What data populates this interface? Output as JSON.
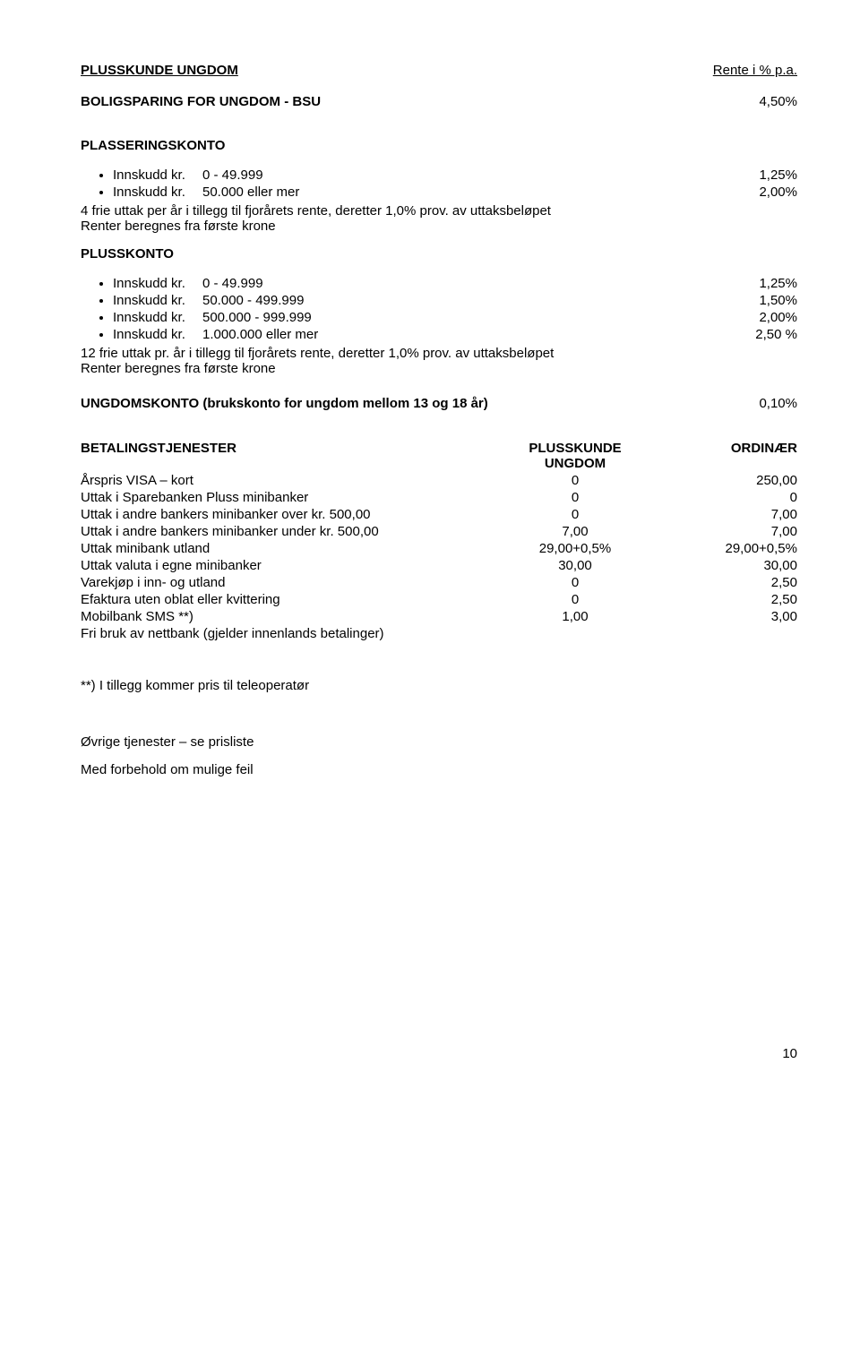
{
  "header": {
    "title_left": "PLUSSKUNDE UNGDOM",
    "title_right": "Rente i % p.a."
  },
  "bsu": {
    "label": "BOLIGSPARING FOR UNGDOM  - BSU",
    "value": "4,50%"
  },
  "plasseringskonto": {
    "title": "PLASSERINGSKONTO",
    "items": [
      {
        "label": "Innskudd kr.",
        "range": "0  -   49.999",
        "value": "1,25%"
      },
      {
        "label": "Innskudd kr.",
        "range": "50.000  eller mer",
        "value": "2,00%"
      }
    ],
    "note1": "4 frie uttak per år i tillegg til fjorårets rente, deretter 1,0% prov. av uttaksbeløpet",
    "note2": "Renter beregnes fra første krone"
  },
  "plusskonto": {
    "title": "PLUSSKONTO",
    "items": [
      {
        "label": "Innskudd kr.",
        "range": "0  -    49.999",
        "value": "1,25%"
      },
      {
        "label": "Innskudd kr.",
        "range": "50.000  -  499.999",
        "value": "1,50%"
      },
      {
        "label": "Innskudd kr.",
        "range": "500.000  -  999.999",
        "value": "2,00%"
      },
      {
        "label": "Innskudd kr.",
        "range": "1.000.000   eller mer",
        "value": "2,50 %"
      }
    ],
    "note1": "12 frie uttak pr. år i tillegg til fjorårets rente, deretter 1,0% prov. av uttaksbeløpet",
    "note2": "Renter beregnes fra første krone"
  },
  "ungdomskonto": {
    "label": "UNGDOMSKONTO (brukskonto for ungdom mellom 13 og 18 år)",
    "value": "0,10%"
  },
  "betaling": {
    "header": {
      "c1": "BETALINGSTJENESTER",
      "c2a": "PLUSSKUNDE",
      "c2b": "UNGDOM",
      "c3": "ORDINÆR"
    },
    "rows": [
      {
        "c1": "Årspris VISA – kort",
        "c2": "0",
        "c3": "250,00"
      },
      {
        "c1": "Uttak i Sparebanken Pluss minibanker",
        "c2": "0",
        "c3": "0"
      },
      {
        "c1": "Uttak i andre bankers minibanker over kr. 500,00",
        "c2": "0",
        "c3": "7,00"
      },
      {
        "c1": "Uttak i andre bankers minibanker under kr. 500,00",
        "c2": "7,00",
        "c3": "7,00"
      },
      {
        "c1": "Uttak minibank utland",
        "c2": "29,00+0,5%",
        "c3": "29,00+0,5%"
      },
      {
        "c1": "Uttak valuta i egne minibanker",
        "c2": "30,00",
        "c3": "30,00"
      },
      {
        "c1": "Varekjøp i inn- og utland",
        "c2": "0",
        "c3": "2,50"
      },
      {
        "c1": "Efaktura uten oblat eller kvittering",
        "c2": "0",
        "c3": "2,50"
      },
      {
        "c1": "Mobilbank SMS **)",
        "c2": "1,00",
        "c3": "3,00"
      },
      {
        "c1": "Fri bruk av nettbank (gjelder innenlands betalinger)",
        "c2": "",
        "c3": ""
      }
    ]
  },
  "footnote": "**) I tillegg kommer pris til teleoperatør",
  "closing1": "Øvrige tjenester – se prisliste",
  "closing2": "Med forbehold om mulige feil",
  "page": "10"
}
